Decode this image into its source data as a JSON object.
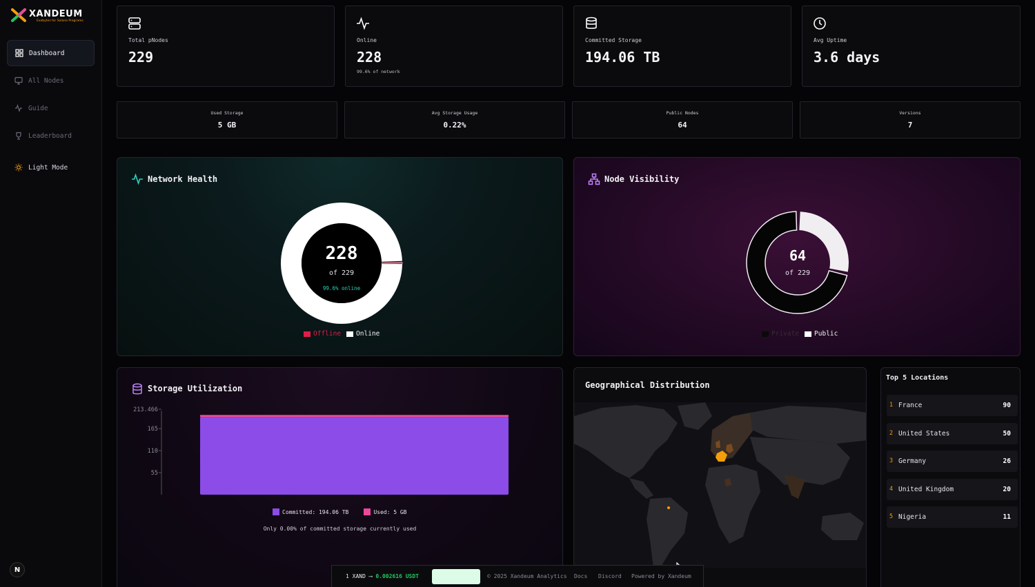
{
  "brand": {
    "name": "XANDEUM",
    "tagline": "Exabytes for Solana Programs"
  },
  "nav": {
    "items": [
      {
        "label": "Dashboard",
        "icon": "grid-icon",
        "active": true
      },
      {
        "label": "All Nodes",
        "icon": "monitor-icon"
      },
      {
        "label": "Guide",
        "icon": "activity-icon"
      },
      {
        "label": "Leaderboard",
        "icon": "trophy-icon"
      }
    ],
    "theme_toggle": "Light Mode",
    "avatar_letter": "N"
  },
  "stats": [
    {
      "label": "Total pNodes",
      "value": "229",
      "icon": "server-icon"
    },
    {
      "label": "Online",
      "value": "228",
      "sub": "99.6% of network",
      "icon": "activity-icon"
    },
    {
      "label": "Committed Storage",
      "value": "194.06 TB",
      "icon": "database-icon"
    },
    {
      "label": "Avg Uptime",
      "value": "3.6 days",
      "icon": "clock-icon"
    }
  ],
  "mini_stats": [
    {
      "label": "Used Storage",
      "value": "5 GB"
    },
    {
      "label": "Avg Storage Usage",
      "value": "0.22%"
    },
    {
      "label": "Public Nodes",
      "value": "64"
    },
    {
      "label": "Versions",
      "value": "7"
    }
  ],
  "network_health": {
    "title": "Network Health",
    "center_value": "228",
    "center_sub": "of 229",
    "center_pct": "99.6% online",
    "legend": [
      "Offline",
      "Online"
    ],
    "online": 228,
    "offline": 1,
    "colors": {
      "online": "#ffffff",
      "offline": "#e11d48"
    }
  },
  "node_visibility": {
    "title": "Node Visibility",
    "center_value": "64",
    "center_sub": "of 229",
    "legend": [
      "Private",
      "Public"
    ],
    "public": 64,
    "private": 165,
    "colors": {
      "public": "#f1eef2",
      "private": "#050505"
    }
  },
  "storage": {
    "title": "Storage Utilization",
    "legend_committed": "Committed: 194.06 TB",
    "legend_used": "Used: 5 GB",
    "note": "Only 0.00% of committed storage currently used",
    "colors": {
      "committed": "#8b4ce8",
      "used": "#ec4899"
    }
  },
  "chart_data": {
    "type": "bar",
    "categories": [
      ""
    ],
    "series": [
      {
        "name": "Committed: 194.06 TB",
        "values": [
          194.06
        ]
      },
      {
        "name": "Used: 5 GB",
        "values": [
          0.005
        ]
      }
    ],
    "ytick_labels": [
      "213.466",
      "165",
      "110",
      "55"
    ],
    "ylim": [
      0,
      213.466
    ],
    "title": "Storage Utilization",
    "xlabel": "",
    "ylabel": ""
  },
  "geo": {
    "title": "Geographical Distribution"
  },
  "top_locations": {
    "title": "Top 5 Locations",
    "items": [
      {
        "rank": "1",
        "name": "France",
        "count": "90"
      },
      {
        "rank": "2",
        "name": "United States",
        "count": "50"
      },
      {
        "rank": "3",
        "name": "Germany",
        "count": "26"
      },
      {
        "rank": "4",
        "name": "United Kingdom",
        "count": "20"
      },
      {
        "rank": "5",
        "name": "Nigeria",
        "count": "11"
      }
    ]
  },
  "footer": {
    "price_prefix": "1 XAND ⟶ ",
    "price_value": "0.002616 USDT",
    "copyright": "© 2025 Xandeum Analytics",
    "docs": "Docs",
    "discord": "Discord",
    "powered": "Powered by Xandeum"
  }
}
